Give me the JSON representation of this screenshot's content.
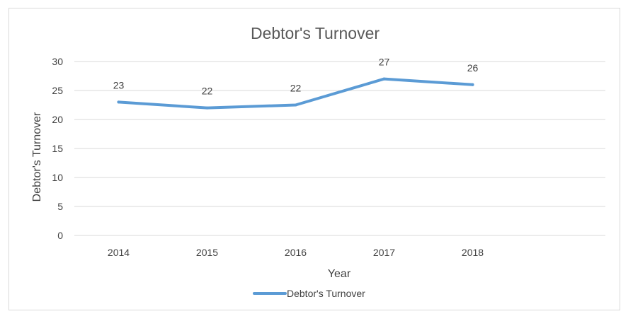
{
  "chart_data": {
    "type": "line",
    "title": "Debtor's Turnover",
    "xlabel": "Year",
    "ylabel": "Debtor's Turnover",
    "categories": [
      "2014",
      "2015",
      "2016",
      "2017",
      "2018"
    ],
    "ylim": [
      0,
      30
    ],
    "yticks": [
      0,
      5,
      10,
      15,
      20,
      25,
      30
    ],
    "grid": true,
    "legend_position": "bottom",
    "series": [
      {
        "name": "Debtor's Turnover",
        "color": "#5b9bd5",
        "values": [
          23,
          22,
          22.5,
          27,
          26
        ],
        "labels": [
          "23",
          "22",
          "22",
          "27",
          "26"
        ]
      }
    ]
  }
}
